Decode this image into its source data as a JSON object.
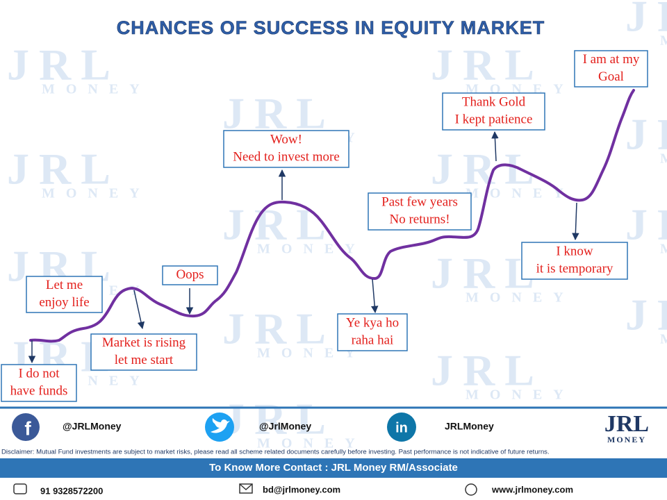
{
  "title": "CHANCES OF SUCCESS IN EQUITY MARKET",
  "annotations": [
    {
      "lines": [
        "I do not",
        "have funds"
      ]
    },
    {
      "lines": [
        "Let me",
        "enjoy life"
      ]
    },
    {
      "lines": [
        "Market is rising",
        "let me start"
      ]
    },
    {
      "lines": [
        "Oops"
      ]
    },
    {
      "lines": [
        "Wow!",
        "Need to invest more"
      ]
    },
    {
      "lines": [
        "Past few years",
        "No returns!"
      ]
    },
    {
      "lines": [
        "Ye kya ho",
        "raha hai"
      ]
    },
    {
      "lines": [
        "Thank Gold",
        "I kept patience"
      ]
    },
    {
      "lines": [
        "I know",
        "it is temporary"
      ]
    },
    {
      "lines": [
        "I am at my",
        "Goal"
      ]
    }
  ],
  "social": [
    {
      "handle": "@JRLMoney"
    },
    {
      "handle": "@JrlMoney"
    },
    {
      "handle": "JRLMoney"
    }
  ],
  "logo": {
    "name": "JRL",
    "sub": "MONEY"
  },
  "disclaimer": "Disclaimer: Mutual Fund investments are subject to market risks, please read all scheme related documents carefully before investing. Past performance is not indicative of future returns.",
  "contact_banner": "To Know More Contact : JRL Money RM/Associate",
  "phone": "91 9328572200",
  "email": "bd@jrlmoney.com",
  "website": "www.jrlmoney.com"
}
